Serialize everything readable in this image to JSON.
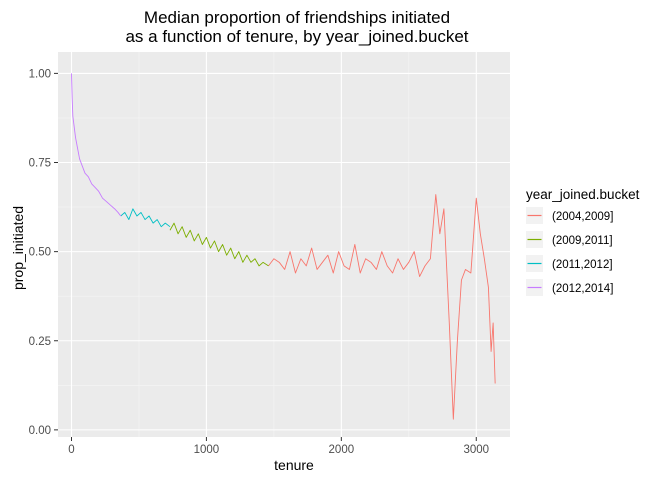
{
  "chart_data": {
    "type": "line",
    "title": [
      "Median proportion of friendships initiated",
      "as a function of tenure, by year_joined.bucket"
    ],
    "xlabel": "tenure",
    "ylabel": "prop_initiated",
    "xlim": [
      -100,
      3250
    ],
    "ylim": [
      -0.02,
      1.06
    ],
    "x_ticks": [
      0,
      1000,
      2000,
      3000
    ],
    "x_tick_labels": [
      "0",
      "1000",
      "2000",
      "3000"
    ],
    "y_ticks": [
      0,
      0.25,
      0.5,
      0.75,
      1.0
    ],
    "y_tick_labels": [
      "0.00",
      "0.25",
      "0.50",
      "0.75",
      "1.00"
    ],
    "grid": true,
    "legend": {
      "title": "year_joined.bucket",
      "position": "right"
    },
    "series": [
      {
        "name": "(2004,2009]",
        "color": "#F8766D",
        "x": [
          1460,
          1500,
          1540,
          1580,
          1620,
          1660,
          1700,
          1740,
          1780,
          1820,
          1860,
          1900,
          1940,
          1980,
          2020,
          2060,
          2100,
          2140,
          2180,
          2220,
          2260,
          2300,
          2340,
          2380,
          2420,
          2460,
          2500,
          2540,
          2580,
          2620,
          2660,
          2700,
          2730,
          2760,
          2800,
          2830,
          2860,
          2890,
          2920,
          2960,
          3000,
          3030,
          3060,
          3090,
          3110,
          3125,
          3140
        ],
        "y": [
          0.46,
          0.48,
          0.47,
          0.45,
          0.5,
          0.44,
          0.48,
          0.46,
          0.51,
          0.45,
          0.47,
          0.49,
          0.44,
          0.5,
          0.46,
          0.45,
          0.52,
          0.44,
          0.48,
          0.47,
          0.45,
          0.5,
          0.46,
          0.44,
          0.48,
          0.45,
          0.47,
          0.5,
          0.43,
          0.46,
          0.48,
          0.66,
          0.55,
          0.62,
          0.3,
          0.03,
          0.25,
          0.42,
          0.45,
          0.44,
          0.65,
          0.55,
          0.48,
          0.4,
          0.22,
          0.3,
          0.13
        ]
      },
      {
        "name": "(2009,2011]",
        "color": "#7CAE00",
        "x": [
          730,
          760,
          790,
          820,
          850,
          880,
          910,
          940,
          970,
          1000,
          1030,
          1060,
          1090,
          1120,
          1150,
          1180,
          1210,
          1240,
          1270,
          1300,
          1330,
          1360,
          1390,
          1420,
          1460
        ],
        "y": [
          0.56,
          0.58,
          0.55,
          0.57,
          0.54,
          0.56,
          0.53,
          0.55,
          0.52,
          0.54,
          0.51,
          0.53,
          0.5,
          0.52,
          0.49,
          0.51,
          0.48,
          0.5,
          0.47,
          0.49,
          0.47,
          0.48,
          0.46,
          0.47,
          0.46
        ]
      },
      {
        "name": "(2011,2012]",
        "color": "#00BFC4",
        "x": [
          365,
          395,
          425,
          455,
          485,
          515,
          545,
          575,
          605,
          635,
          665,
          695,
          730
        ],
        "y": [
          0.6,
          0.61,
          0.59,
          0.62,
          0.6,
          0.61,
          0.59,
          0.6,
          0.58,
          0.59,
          0.57,
          0.58,
          0.57
        ]
      },
      {
        "name": "(2012,2014]",
        "color": "#C77CFF",
        "x": [
          0,
          5,
          10,
          20,
          30,
          45,
          60,
          80,
          100,
          125,
          150,
          175,
          200,
          230,
          260,
          290,
          320,
          345,
          365
        ],
        "y": [
          1.0,
          0.93,
          0.88,
          0.85,
          0.82,
          0.79,
          0.76,
          0.74,
          0.72,
          0.71,
          0.69,
          0.68,
          0.67,
          0.65,
          0.64,
          0.63,
          0.62,
          0.61,
          0.6
        ]
      }
    ]
  }
}
